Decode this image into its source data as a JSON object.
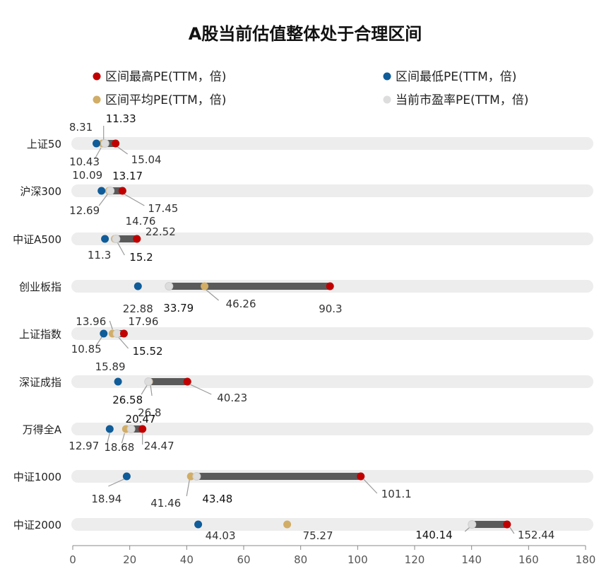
{
  "chart_data": {
    "type": "dot-range",
    "title": "A股当前估值整体处于合理区间",
    "legend": [
      {
        "key": "max",
        "label": "区间最高PE(TTM，倍)",
        "color": "#C00000"
      },
      {
        "key": "min",
        "label": "区间最低PE(TTM，倍)",
        "color": "#0F5C99"
      },
      {
        "key": "avg",
        "label": "区间平均PE(TTM，倍)",
        "color": "#D1AD66"
      },
      {
        "key": "cur",
        "label": "当前市盈率PE(TTM，倍)",
        "color": "#DDDDDD"
      }
    ],
    "xlim": [
      0,
      180
    ],
    "xticks": [
      "0",
      "20",
      "40",
      "60",
      "80",
      "100",
      "120",
      "140",
      "160",
      "180"
    ],
    "categories": [
      "上证50",
      "沪深300",
      "中证A500",
      "创业板指",
      "上证指数",
      "深证成指",
      "万得全A",
      "中证1000",
      "中证2000"
    ],
    "series": {
      "min": [
        8.31,
        10.09,
        11.3,
        22.88,
        10.85,
        15.89,
        12.97,
        18.94,
        44.03
      ],
      "max": [
        15.04,
        17.45,
        22.52,
        90.3,
        17.96,
        40.23,
        24.47,
        101.1,
        152.44
      ],
      "avg": [
        10.43,
        12.69,
        14.76,
        46.26,
        13.96,
        26.8,
        18.68,
        41.46,
        75.27
      ],
      "cur": [
        11.33,
        13.17,
        15.2,
        33.79,
        15.52,
        26.58,
        20.47,
        43.48,
        140.14
      ]
    },
    "labels": {
      "min": [
        "8.31",
        "10.09",
        "11.3",
        "22.88",
        "10.85",
        "15.89",
        "12.97",
        "18.94",
        "44.03"
      ],
      "max": [
        "15.04",
        "17.45",
        "22.52",
        "90.3",
        "17.96",
        "40.23",
        "24.47",
        "101.1",
        "152.44"
      ],
      "avg": [
        "10.43",
        "12.69",
        "14.76",
        "46.26",
        "13.96",
        "26.8",
        "18.68",
        "41.46",
        "75.27"
      ],
      "cur": [
        "11.33",
        "13.17",
        "15.2",
        "33.79",
        "15.52",
        "26.58",
        "20.47",
        "43.48",
        "140.14"
      ]
    }
  }
}
